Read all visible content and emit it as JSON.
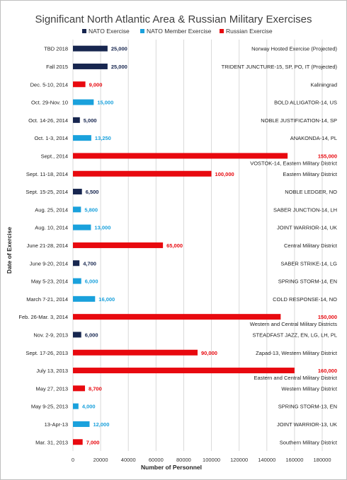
{
  "chart_data": {
    "type": "bar",
    "orientation": "horizontal",
    "title": "Significant North Atlantic Area & Russian Military Exercises",
    "xlabel": "Number of Personnel",
    "ylabel": "Date of Exercise",
    "xlim": [
      0,
      180000
    ],
    "xticks": [
      "0",
      "20000",
      "40000",
      "60000",
      "80000",
      "100000",
      "120000",
      "140000",
      "160000",
      "180000"
    ],
    "grid": true,
    "legend_position": "top",
    "legend": [
      {
        "key": "nato",
        "name": "NATO Exercise",
        "color": "#17264f"
      },
      {
        "key": "member",
        "name": "NATO Member Exercise",
        "color": "#1aa1dc"
      },
      {
        "key": "russia",
        "name": "Russian Exercise",
        "color": "#e8090f"
      }
    ],
    "bars": [
      {
        "date": "TBD 2018",
        "value": 25000,
        "value_label": "25,000",
        "type": "nato",
        "label": "Norway Hosted Exercise (Projected)"
      },
      {
        "date": "Fall 2015",
        "value": 25000,
        "value_label": "25,000",
        "type": "nato",
        "label": "TRIDENT JUNCTURE-15, SP, PO, IT (Projected)"
      },
      {
        "date": "Dec. 5-10, 2014",
        "value": 9000,
        "value_label": "9,000",
        "type": "russia",
        "label": "Kaliningrad"
      },
      {
        "date": "Oct. 29-Nov. 10",
        "value": 15000,
        "value_label": "15,000",
        "type": "member",
        "label": "BOLD ALLIGATOR-14, US"
      },
      {
        "date": "Oct. 14-26, 2014",
        "value": 5000,
        "value_label": "5,000",
        "type": "nato",
        "label": "NOBLE JUSTIFICATION-14, SP"
      },
      {
        "date": "Oct. 1-3, 2014",
        "value": 13250,
        "value_label": "13,250",
        "type": "member",
        "label": "ANAKONDA-14, PL"
      },
      {
        "date": "Sept., 2014",
        "value": 155000,
        "value_label": "155,000",
        "type": "russia",
        "label": "VOSTOK-14, Eastern Military District"
      },
      {
        "date": "Sept. 11-18, 2014",
        "value": 100000,
        "value_label": "100,000",
        "type": "russia",
        "label": "Eastern Military District"
      },
      {
        "date": "Sept. 15-25, 2014",
        "value": 6500,
        "value_label": "6,500",
        "type": "nato",
        "label": "NOBLE LEDGER, NO"
      },
      {
        "date": "Aug. 25, 2014",
        "value": 5800,
        "value_label": "5,800",
        "type": "member",
        "label": "SABER JUNCTION-14, LH"
      },
      {
        "date": "Aug. 10, 2014",
        "value": 13000,
        "value_label": "13,000",
        "type": "member",
        "label": "JOINT WARRIOR-14, UK"
      },
      {
        "date": "June 21-28, 2014",
        "value": 65000,
        "value_label": "65,000",
        "type": "russia",
        "label": "Central Military District"
      },
      {
        "date": "June 9-20, 2014",
        "value": 4700,
        "value_label": "4,700",
        "type": "nato",
        "label": "SABER STRIKE-14, LG"
      },
      {
        "date": "May 5-23, 2014",
        "value": 6000,
        "value_label": "6,000",
        "type": "member",
        "label": "SPRING STORM-14, EN"
      },
      {
        "date": "March 7-21, 2014",
        "value": 16000,
        "value_label": "16,000",
        "type": "member",
        "label": "COLD RESPONSE-14, NO"
      },
      {
        "date": "Feb. 26-Mar. 3, 2014",
        "value": 150000,
        "value_label": "150,000",
        "type": "russia",
        "label": "Western and Central Military Districts"
      },
      {
        "date": "Nov. 2-9, 2013",
        "value": 6000,
        "value_label": "6,000",
        "type": "nato",
        "label": "STEADFAST JAZZ, EN, LG, LH, PL"
      },
      {
        "date": "Sept. 17-26, 2013",
        "value": 90000,
        "value_label": "90,000",
        "type": "russia",
        "label": "Zapad-13, Western Military District"
      },
      {
        "date": "July 13, 2013",
        "value": 160000,
        "value_label": "160,000",
        "type": "russia",
        "label": "Eastern and Central Military District"
      },
      {
        "date": "May 27, 2013",
        "value": 8700,
        "value_label": "8,700",
        "type": "russia",
        "label": "Western Military District"
      },
      {
        "date": "May 9-25, 2013",
        "value": 4000,
        "value_label": "4,000",
        "type": "member",
        "label": "SPRING STORM-13, EN"
      },
      {
        "date": "13-Apr-13",
        "value": 12000,
        "value_label": "12,000",
        "type": "member",
        "label": "JOINT WARRIOR-13, UK"
      },
      {
        "date": "Mar. 31, 2013",
        "value": 7000,
        "value_label": "7,000",
        "type": "russia",
        "label": "Southern Military District"
      }
    ]
  }
}
